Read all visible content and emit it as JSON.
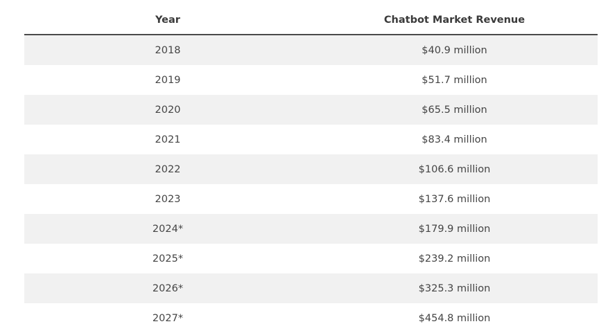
{
  "table": {
    "headers": {
      "year": "Year",
      "revenue": "Chatbot Market Revenue"
    },
    "rows": [
      {
        "year": "2018",
        "revenue": "$40.9 million"
      },
      {
        "year": "2019",
        "revenue": "$51.7 million"
      },
      {
        "year": "2020",
        "revenue": "$65.5 million"
      },
      {
        "year": "2021",
        "revenue": "$83.4 million"
      },
      {
        "year": "2022",
        "revenue": "$106.6 million"
      },
      {
        "year": "2023",
        "revenue": "$137.6 million"
      },
      {
        "year": "2024*",
        "revenue": "$179.9 million"
      },
      {
        "year": "2025*",
        "revenue": "$239.2 million"
      },
      {
        "year": "2026*",
        "revenue": "$325.3 million"
      },
      {
        "year": "2027*",
        "revenue": "$454.8 million"
      }
    ]
  },
  "colors": {
    "row_stripe": "#f1f1f1",
    "header_rule": "#4a4a4a",
    "text": "#444444"
  }
}
